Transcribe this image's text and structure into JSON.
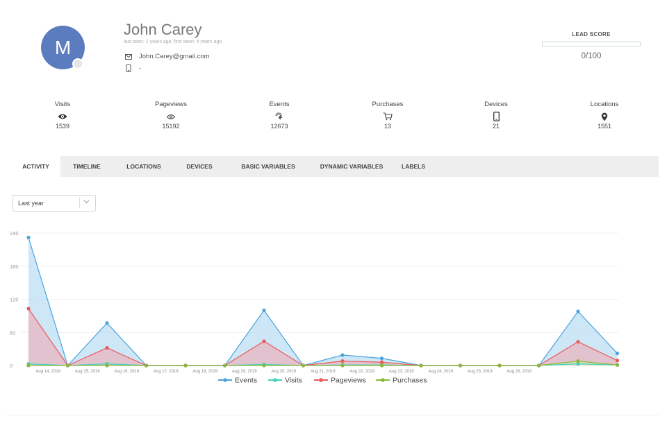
{
  "profile": {
    "avatar_initial": "M",
    "name": "John Carey",
    "seen": "last seen: 2 years ago, first seen: 4 years ago",
    "email": "John.Carey@gmail.com",
    "phone": "-"
  },
  "lead_score": {
    "title": "LEAD SCORE",
    "value": "0/100",
    "fraction": 0.0
  },
  "stats": [
    {
      "label": "Visits",
      "value": "1539",
      "icon": "eye-icon"
    },
    {
      "label": "Pageviews",
      "value": "15192",
      "icon": "eye-outline-icon"
    },
    {
      "label": "Events",
      "value": "12673",
      "icon": "click-icon"
    },
    {
      "label": "Purchases",
      "value": "13",
      "icon": "cart-icon"
    },
    {
      "label": "Devices",
      "value": "21",
      "icon": "phone-icon"
    },
    {
      "label": "Locations",
      "value": "1551",
      "icon": "location-pin-icon"
    }
  ],
  "tabs": [
    "ACTIVITY",
    "TIMELINE",
    "LOCATIONS",
    "DEVICES",
    "BASIC VARIABLES",
    "DYNAMIC VARIABLES",
    "LABELS"
  ],
  "period_select": {
    "value": "Last year"
  },
  "chart_data": {
    "type": "area",
    "x": [
      "",
      "Aug 14, 2019",
      "",
      "Aug 15, 2019",
      "",
      "Aug 16, 2019",
      "",
      "Aug 17, 2019",
      "",
      "Aug 18, 2019",
      "",
      "Aug 19, 2019",
      "",
      "Aug 20, 2019",
      "",
      "Aug 21, 2019",
      "",
      "Aug 22, 2019",
      "",
      "Aug 23, 2019",
      "",
      "Aug 24, 2019",
      "",
      "Aug 25, 2019",
      "",
      "Aug 26, 2019",
      ""
    ],
    "ylim": [
      0,
      240
    ],
    "yticks": [
      0,
      60,
      120,
      180,
      240
    ],
    "grid": true,
    "legend_position": "bottom-center",
    "series": [
      {
        "name": "Events",
        "color": "#4aa3df",
        "fill": "#bcdff3",
        "points": [
          [
            0,
            232
          ],
          [
            2,
            0
          ],
          [
            4,
            77
          ],
          [
            6,
            0
          ],
          [
            8,
            0
          ],
          [
            10,
            0
          ],
          [
            12,
            100
          ],
          [
            14,
            0
          ],
          [
            16,
            19
          ],
          [
            18,
            13
          ],
          [
            20,
            0
          ],
          [
            22,
            0
          ],
          [
            24,
            0
          ],
          [
            26,
            0
          ],
          [
            28,
            98
          ],
          [
            30,
            22
          ]
        ]
      },
      {
        "name": "Visits",
        "color": "#3fd2b5",
        "fill": "#c3efe6",
        "points": [
          [
            0,
            3
          ],
          [
            2,
            0
          ],
          [
            4,
            3
          ],
          [
            6,
            0
          ],
          [
            8,
            0
          ],
          [
            10,
            0
          ],
          [
            12,
            2
          ],
          [
            14,
            0
          ],
          [
            16,
            1
          ],
          [
            18,
            1
          ],
          [
            20,
            0
          ],
          [
            22,
            0
          ],
          [
            24,
            0
          ],
          [
            26,
            0
          ],
          [
            28,
            3
          ],
          [
            30,
            1
          ]
        ]
      },
      {
        "name": "Pageviews",
        "color": "#ea5a5a",
        "fill": "#e8b6c0",
        "points": [
          [
            0,
            103
          ],
          [
            2,
            0
          ],
          [
            4,
            32
          ],
          [
            6,
            0
          ],
          [
            8,
            0
          ],
          [
            10,
            0
          ],
          [
            12,
            44
          ],
          [
            14,
            0
          ],
          [
            16,
            8
          ],
          [
            18,
            6
          ],
          [
            20,
            0
          ],
          [
            22,
            0
          ],
          [
            24,
            0
          ],
          [
            26,
            0
          ],
          [
            28,
            43
          ],
          [
            30,
            9
          ]
        ]
      },
      {
        "name": "Purchases",
        "color": "#8bb83a",
        "fill": "#d8e7b9",
        "points": [
          [
            0,
            0
          ],
          [
            2,
            0
          ],
          [
            4,
            0
          ],
          [
            6,
            0
          ],
          [
            8,
            0
          ],
          [
            10,
            0
          ],
          [
            12,
            0
          ],
          [
            14,
            0
          ],
          [
            16,
            0
          ],
          [
            18,
            0
          ],
          [
            20,
            0
          ],
          [
            22,
            0
          ],
          [
            24,
            0
          ],
          [
            26,
            0
          ],
          [
            28,
            8
          ],
          [
            30,
            1
          ]
        ]
      }
    ]
  }
}
